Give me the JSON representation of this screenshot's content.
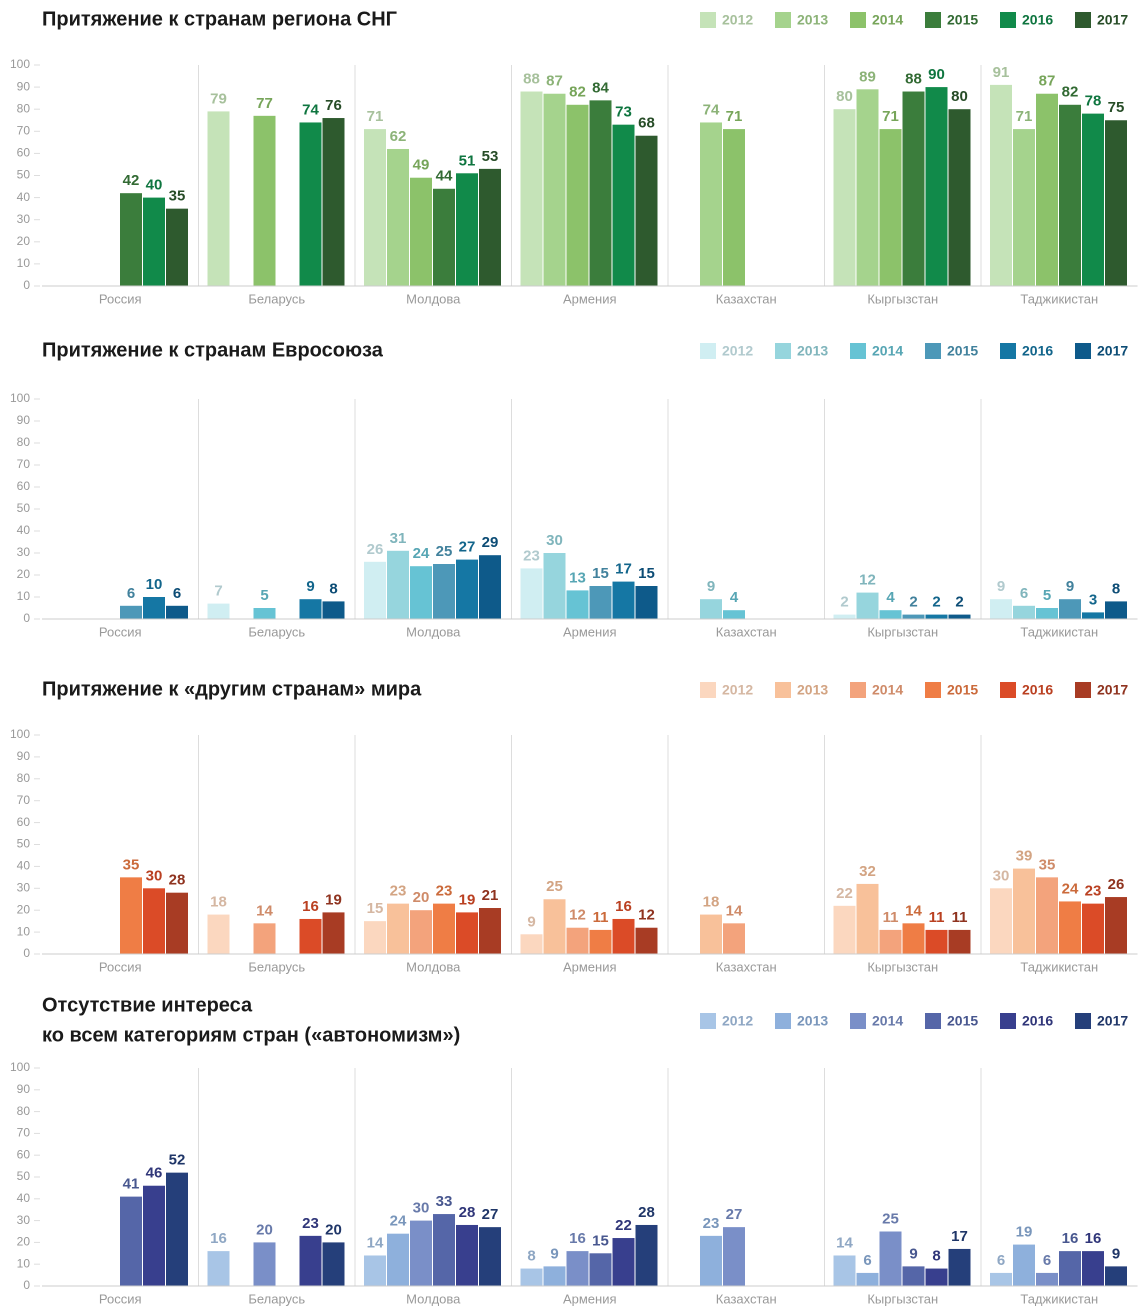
{
  "chart_data": [
    {
      "type": "bar",
      "title": [
        "Притяжение к странам региона СНГ"
      ],
      "categories": [
        "Россия",
        "Беларусь",
        "Молдова",
        "Армения",
        "Казахстан",
        "Кыргызстан",
        "Таджикистан"
      ],
      "ylim": [
        0,
        100
      ],
      "yticks": [
        0,
        10,
        20,
        30,
        40,
        50,
        60,
        70,
        80,
        90,
        100
      ],
      "series": [
        {
          "name": "2012",
          "color": "#c5e3b8",
          "values": [
            null,
            79,
            71,
            88,
            null,
            80,
            91
          ]
        },
        {
          "name": "2013",
          "color": "#a5d38d",
          "values": [
            null,
            null,
            62,
            87,
            74,
            89,
            71
          ]
        },
        {
          "name": "2014",
          "color": "#8cc26a",
          "values": [
            null,
            77,
            49,
            82,
            71,
            71,
            87
          ]
        },
        {
          "name": "2015",
          "color": "#3b7d3c",
          "values": [
            42,
            null,
            44,
            84,
            null,
            88,
            82
          ]
        },
        {
          "name": "2016",
          "color": "#118a4a",
          "values": [
            40,
            74,
            51,
            73,
            null,
            90,
            78
          ]
        },
        {
          "name": "2017",
          "color": "#2e5a2e",
          "values": [
            35,
            76,
            53,
            68,
            null,
            80,
            75
          ]
        }
      ]
    },
    {
      "type": "bar",
      "title": [
        "Притяжение к странам Евросоюза"
      ],
      "categories": [
        "Россия",
        "Беларусь",
        "Молдова",
        "Армения",
        "Казахстан",
        "Кыргызстан",
        "Таджикистан"
      ],
      "ylim": [
        0,
        100
      ],
      "yticks": [
        0,
        10,
        20,
        30,
        40,
        50,
        60,
        70,
        80,
        90,
        100
      ],
      "series": [
        {
          "name": "2012",
          "color": "#d0eef2",
          "values": [
            null,
            7,
            26,
            23,
            null,
            2,
            9
          ]
        },
        {
          "name": "2013",
          "color": "#96d5dd",
          "values": [
            null,
            null,
            31,
            30,
            9,
            12,
            6
          ]
        },
        {
          "name": "2014",
          "color": "#66c3d4",
          "values": [
            null,
            5,
            24,
            13,
            4,
            4,
            5
          ]
        },
        {
          "name": "2015",
          "color": "#4d98b8",
          "values": [
            6,
            null,
            25,
            15,
            null,
            2,
            9
          ]
        },
        {
          "name": "2016",
          "color": "#1577a4",
          "values": [
            10,
            9,
            27,
            17,
            null,
            2,
            3
          ]
        },
        {
          "name": "2017",
          "color": "#0e5a8a",
          "values": [
            6,
            8,
            29,
            15,
            null,
            2,
            8
          ]
        }
      ]
    },
    {
      "type": "bar",
      "title": [
        "Притяжение к «другим странам» мира"
      ],
      "categories": [
        "Россия",
        "Беларусь",
        "Молдова",
        "Армения",
        "Казахстан",
        "Кыргызстан",
        "Таджикистан"
      ],
      "ylim": [
        0,
        100
      ],
      "yticks": [
        0,
        10,
        20,
        30,
        40,
        50,
        60,
        70,
        80,
        90,
        100
      ],
      "series": [
        {
          "name": "2012",
          "color": "#fbd7bf",
          "values": [
            null,
            18,
            15,
            9,
            null,
            22,
            30
          ]
        },
        {
          "name": "2013",
          "color": "#f8c19a",
          "values": [
            null,
            null,
            23,
            25,
            18,
            32,
            39
          ]
        },
        {
          "name": "2014",
          "color": "#f3a37c",
          "values": [
            null,
            14,
            20,
            12,
            14,
            11,
            35
          ]
        },
        {
          "name": "2015",
          "color": "#ef7d45",
          "values": [
            35,
            null,
            23,
            11,
            null,
            14,
            24
          ]
        },
        {
          "name": "2016",
          "color": "#db4b27",
          "values": [
            30,
            16,
            19,
            16,
            null,
            11,
            23
          ]
        },
        {
          "name": "2017",
          "color": "#a83c24",
          "values": [
            28,
            19,
            21,
            12,
            null,
            11,
            26
          ]
        }
      ]
    },
    {
      "type": "bar",
      "title": [
        "Отсутствие интереса",
        "ко всем категориям стран («автономизм»)"
      ],
      "categories": [
        "Россия",
        "Беларусь",
        "Молдова",
        "Армения",
        "Казахстан",
        "Кыргызстан",
        "Таджикистан"
      ],
      "ylim": [
        0,
        100
      ],
      "yticks": [
        0,
        10,
        20,
        30,
        40,
        50,
        60,
        70,
        80,
        90,
        100
      ],
      "series": [
        {
          "name": "2012",
          "color": "#a8c5e6",
          "values": [
            null,
            16,
            14,
            8,
            null,
            14,
            6
          ]
        },
        {
          "name": "2013",
          "color": "#8eb0dc",
          "values": [
            null,
            null,
            24,
            9,
            23,
            6,
            19
          ]
        },
        {
          "name": "2014",
          "color": "#7a8fc8",
          "values": [
            null,
            20,
            30,
            16,
            27,
            25,
            6
          ]
        },
        {
          "name": "2015",
          "color": "#5566a8",
          "values": [
            41,
            null,
            33,
            15,
            null,
            9,
            16
          ]
        },
        {
          "name": "2016",
          "color": "#383f8e",
          "values": [
            46,
            23,
            28,
            22,
            null,
            8,
            16
          ]
        },
        {
          "name": "2017",
          "color": "#253f7a",
          "values": [
            52,
            20,
            27,
            28,
            null,
            17,
            9
          ]
        }
      ]
    }
  ]
}
